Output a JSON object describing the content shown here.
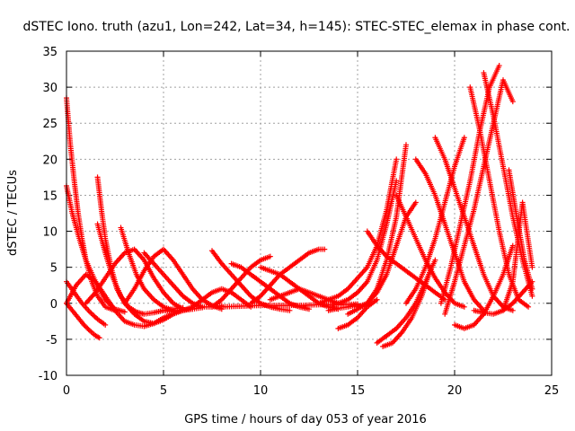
{
  "chart_data": {
    "type": "scatter",
    "title": "dSTEC Iono. truth (azu1, Lon=242, Lat=34, h=145): STEC-STEC_elemax in phase cont.",
    "xlabel": "GPS time / hours of day 053 of year 2016",
    "ylabel": "dSTEC  / TECUs",
    "xlim": [
      0,
      25
    ],
    "ylim": [
      -10,
      35
    ],
    "xticks": [
      0,
      5,
      10,
      15,
      20,
      25
    ],
    "xtick_labels": [
      "0",
      "5",
      "10",
      "15",
      "20",
      "25"
    ],
    "yticks": [
      -10,
      -5,
      0,
      5,
      10,
      15,
      20,
      25,
      30,
      35
    ],
    "ytick_labels": [
      "-10",
      "-5",
      "0",
      "5",
      "10",
      "15",
      "20",
      "25",
      "30",
      "35"
    ],
    "grid": true,
    "marker": "plus",
    "color": "#ff0000",
    "series": [
      {
        "x": [
          0.0,
          0.2,
          0.4,
          0.6,
          0.8,
          1.0,
          1.3,
          1.6,
          2.0,
          2.5
        ],
        "y": [
          28.5,
          22.0,
          17.0,
          12.5,
          9.0,
          6.0,
          3.0,
          1.0,
          -0.5,
          -1.0
        ]
      },
      {
        "x": [
          0.0,
          0.3,
          0.6,
          1.0,
          1.5,
          2.0,
          2.5,
          3.0
        ],
        "y": [
          16.3,
          12.5,
          9.5,
          6.0,
          3.0,
          0.5,
          -0.8,
          -1.2
        ]
      },
      {
        "x": [
          0.0,
          0.3,
          0.6,
          0.9,
          1.2,
          1.5,
          1.7
        ],
        "y": [
          0.0,
          -1.0,
          -2.0,
          -3.0,
          -3.8,
          -4.5,
          -4.8
        ]
      },
      {
        "x": [
          0.0,
          0.4,
          0.8,
          1.2,
          1.6,
          2.0
        ],
        "y": [
          3.0,
          1.5,
          0.0,
          -1.2,
          -2.2,
          -3.0
        ]
      },
      {
        "x": [
          0.0,
          0.5,
          1.0,
          1.5,
          2.0,
          2.5,
          3.0,
          3.5,
          4.0,
          4.5,
          5.0,
          5.5
        ],
        "y": [
          0.0,
          2.5,
          4.0,
          3.0,
          1.0,
          -1.0,
          -2.5,
          -3.0,
          -3.2,
          -2.8,
          -2.0,
          -1.5
        ]
      },
      {
        "x": [
          1.6,
          1.8,
          2.0,
          2.3,
          2.6,
          3.0,
          3.5,
          4.0,
          4.5,
          5.0,
          5.5,
          6.0,
          6.5
        ],
        "y": [
          17.5,
          13.0,
          9.0,
          5.0,
          2.0,
          0.0,
          -1.5,
          -2.5,
          -2.8,
          -2.3,
          -1.5,
          -1.0,
          -0.8
        ]
      },
      {
        "x": [
          1.6,
          2.0,
          2.4,
          2.8,
          3.2,
          3.6,
          4.0,
          4.5,
          5.0,
          5.5,
          6.0
        ],
        "y": [
          11.0,
          7.0,
          3.5,
          1.0,
          -0.5,
          -1.2,
          -1.5,
          -1.3,
          -1.0,
          -0.8,
          -0.6
        ]
      },
      {
        "x": [
          2.8,
          3.2,
          3.6,
          4.0,
          4.5,
          5.0,
          5.5,
          6.0,
          6.5,
          7.0
        ],
        "y": [
          10.5,
          7.0,
          4.0,
          2.0,
          0.5,
          -0.5,
          -1.0,
          -1.0,
          -0.8,
          -0.6
        ]
      },
      {
        "x": [
          1.0,
          1.5,
          2.0,
          2.5,
          3.0,
          3.5,
          4.0,
          4.5,
          5.0,
          5.5,
          6.0
        ],
        "y": [
          0.0,
          1.5,
          3.5,
          5.5,
          7.0,
          7.5,
          6.0,
          3.5,
          1.5,
          0.0,
          -0.8
        ]
      },
      {
        "x": [
          3.0,
          3.5,
          4.0,
          4.5,
          5.0,
          5.5,
          6.0,
          6.5,
          7.0,
          7.5,
          8.0
        ],
        "y": [
          0.0,
          2.0,
          4.5,
          6.5,
          7.5,
          6.0,
          4.0,
          2.0,
          0.5,
          -0.3,
          -0.8
        ]
      },
      {
        "x": [
          4.0,
          4.5,
          5.0,
          5.5,
          6.0,
          6.5,
          7.0,
          7.5,
          8.0
        ],
        "y": [
          7.0,
          5.5,
          4.0,
          2.5,
          1.0,
          0.0,
          -0.5,
          -0.5,
          -0.3
        ]
      },
      {
        "x": [
          5.0,
          5.5,
          6.0,
          6.5,
          7.0,
          7.5,
          8.0,
          8.5,
          9.0,
          9.5
        ],
        "y": [
          -1.0,
          -1.2,
          -1.0,
          -0.5,
          0.5,
          1.5,
          2.0,
          1.5,
          0.5,
          -0.5
        ]
      },
      {
        "x": [
          7.5,
          8.0,
          8.5,
          9.0,
          9.5,
          10.0,
          10.5,
          11.0,
          11.5
        ],
        "y": [
          7.3,
          5.5,
          4.0,
          2.5,
          1.0,
          0.0,
          -0.5,
          -0.8,
          -1.0
        ]
      },
      {
        "x": [
          7.5,
          8.0,
          8.5,
          9.0,
          9.5,
          10.0,
          10.5
        ],
        "y": [
          -0.5,
          0.5,
          2.0,
          3.5,
          5.0,
          6.0,
          6.5
        ]
      },
      {
        "x": [
          8.5,
          9.0,
          9.5,
          10.0,
          10.5,
          11.0,
          11.5,
          12.0,
          12.5
        ],
        "y": [
          5.5,
          5.0,
          4.0,
          3.0,
          2.0,
          1.0,
          0.0,
          -0.5,
          -0.8
        ]
      },
      {
        "x": [
          9.5,
          10.0,
          10.5,
          11.0,
          11.5,
          12.0,
          12.5,
          13.0,
          13.3
        ],
        "y": [
          0.0,
          1.0,
          2.5,
          4.0,
          5.0,
          6.0,
          7.0,
          7.5,
          7.5
        ]
      },
      {
        "x": [
          10.0,
          10.5,
          11.0,
          11.5,
          12.0,
          12.5,
          13.0,
          13.5,
          14.0
        ],
        "y": [
          5.0,
          4.5,
          4.0,
          3.0,
          2.0,
          1.0,
          0.0,
          -0.5,
          -0.8
        ]
      },
      {
        "x": [
          10.5,
          11.0,
          11.5,
          12.0,
          12.5,
          13.0,
          13.5,
          14.0
        ],
        "y": [
          0.5,
          1.0,
          1.5,
          2.0,
          1.5,
          1.0,
          0.5,
          0.0
        ]
      },
      {
        "x": [
          8.0,
          9.0,
          10.0,
          11.0,
          12.0,
          13.0,
          14.0,
          15.0
        ],
        "y": [
          -0.5,
          -0.4,
          -0.3,
          -0.3,
          -0.3,
          -0.2,
          -0.2,
          -0.1
        ]
      },
      {
        "x": [
          13.5,
          14.0,
          14.5,
          15.0
        ],
        "y": [
          -1.0,
          -0.7,
          -0.5,
          -0.2
        ]
      },
      {
        "x": [
          14.0,
          14.5,
          15.0,
          15.5,
          16.0
        ],
        "y": [
          -3.5,
          -3.0,
          -2.0,
          -0.5,
          0.5
        ]
      },
      {
        "x": [
          14.5,
          15.0,
          15.5,
          16.0,
          16.5,
          17.0,
          17.5,
          18.0
        ],
        "y": [
          -1.5,
          -0.8,
          0.0,
          1.5,
          4.0,
          8.0,
          12.0,
          14.0
        ]
      },
      {
        "x": [
          14.0,
          14.5,
          15.0,
          15.5,
          16.0,
          16.5,
          17.0
        ],
        "y": [
          0.0,
          0.5,
          1.5,
          3.0,
          6.0,
          11.0,
          17.0
        ]
      },
      {
        "x": [
          15.0,
          15.5,
          16.0,
          16.5,
          17.0,
          17.5
        ],
        "y": [
          -0.5,
          0.0,
          2.0,
          6.0,
          12.0,
          22.0
        ]
      },
      {
        "x": [
          13.0,
          13.5,
          14.0,
          14.5,
          15.0,
          15.5,
          16.0,
          16.5,
          17.0
        ],
        "y": [
          0.0,
          0.5,
          1.0,
          2.0,
          3.5,
          5.0,
          8.0,
          13.0,
          20.0
        ]
      },
      {
        "x": [
          16.0,
          16.5,
          17.0,
          17.5,
          18.0,
          18.5,
          19.0
        ],
        "y": [
          -5.5,
          -4.5,
          -3.5,
          -2.0,
          0.0,
          3.0,
          6.0
        ]
      },
      {
        "x": [
          16.3,
          16.8,
          17.3,
          17.8,
          18.3,
          18.8
        ],
        "y": [
          -6.0,
          -5.5,
          -4.0,
          -2.0,
          1.0,
          5.0
        ]
      },
      {
        "x": [
          15.5,
          16.0,
          16.5,
          17.0,
          17.5,
          18.0,
          18.5,
          19.0,
          19.5
        ],
        "y": [
          10.0,
          8.0,
          6.5,
          5.5,
          4.5,
          3.5,
          2.5,
          1.5,
          0.5
        ]
      },
      {
        "x": [
          17.0,
          17.5,
          18.0,
          18.5,
          19.0,
          19.5,
          20.0,
          20.5
        ],
        "y": [
          15.0,
          12.0,
          9.0,
          6.0,
          3.5,
          1.5,
          0.0,
          -0.5
        ]
      },
      {
        "x": [
          17.5,
          18.0,
          18.5,
          19.0,
          19.5,
          20.0,
          20.5
        ],
        "y": [
          0.0,
          2.0,
          5.0,
          9.0,
          14.0,
          19.0,
          23.0
        ]
      },
      {
        "x": [
          18.0,
          18.5,
          19.0,
          19.5,
          20.0,
          20.5,
          21.0,
          21.5
        ],
        "y": [
          20.0,
          18.0,
          15.0,
          11.0,
          7.0,
          3.0,
          0.5,
          -1.0
        ]
      },
      {
        "x": [
          19.0,
          19.5,
          20.0,
          20.5,
          21.0,
          21.5,
          22.0,
          22.5,
          23.0
        ],
        "y": [
          23.0,
          20.0,
          16.0,
          12.0,
          8.0,
          4.0,
          1.0,
          -0.5,
          -1.0
        ]
      },
      {
        "x": [
          19.3,
          19.8,
          20.3,
          20.8,
          21.3,
          21.8,
          22.3
        ],
        "y": [
          0.0,
          5.0,
          11.0,
          17.0,
          24.0,
          30.0,
          33.0
        ]
      },
      {
        "x": [
          19.5,
          20.0,
          20.5,
          21.0,
          21.5,
          22.0,
          22.5,
          23.0
        ],
        "y": [
          -1.5,
          3.0,
          8.0,
          13.0,
          19.0,
          25.0,
          31.0,
          28.0
        ]
      },
      {
        "x": [
          20.0,
          20.5,
          21.0,
          21.5,
          22.0,
          22.5,
          23.0
        ],
        "y": [
          -3.0,
          -3.5,
          -3.0,
          -1.5,
          1.0,
          4.0,
          8.0
        ]
      },
      {
        "x": [
          21.5,
          22.0,
          22.5,
          23.0,
          23.5,
          24.0
        ],
        "y": [
          32.0,
          26.0,
          19.0,
          12.0,
          6.0,
          1.0
        ]
      },
      {
        "x": [
          20.8,
          21.3,
          21.8,
          22.3,
          22.8,
          23.3,
          23.8
        ],
        "y": [
          30.0,
          24.0,
          17.0,
          10.0,
          4.0,
          0.5,
          -0.5
        ]
      },
      {
        "x": [
          22.5,
          23.0,
          23.5,
          24.0
        ],
        "y": [
          -1.0,
          3.0,
          14.0,
          5.0
        ]
      },
      {
        "x": [
          22.8,
          23.2,
          23.6,
          24.0
        ],
        "y": [
          18.5,
          12.0,
          6.0,
          2.0
        ]
      },
      {
        "x": [
          21.0,
          21.5,
          22.0,
          22.5,
          23.0,
          23.5,
          24.0
        ],
        "y": [
          -1.0,
          -1.3,
          -1.5,
          -1.0,
          0.0,
          1.5,
          3.0
        ]
      }
    ]
  }
}
